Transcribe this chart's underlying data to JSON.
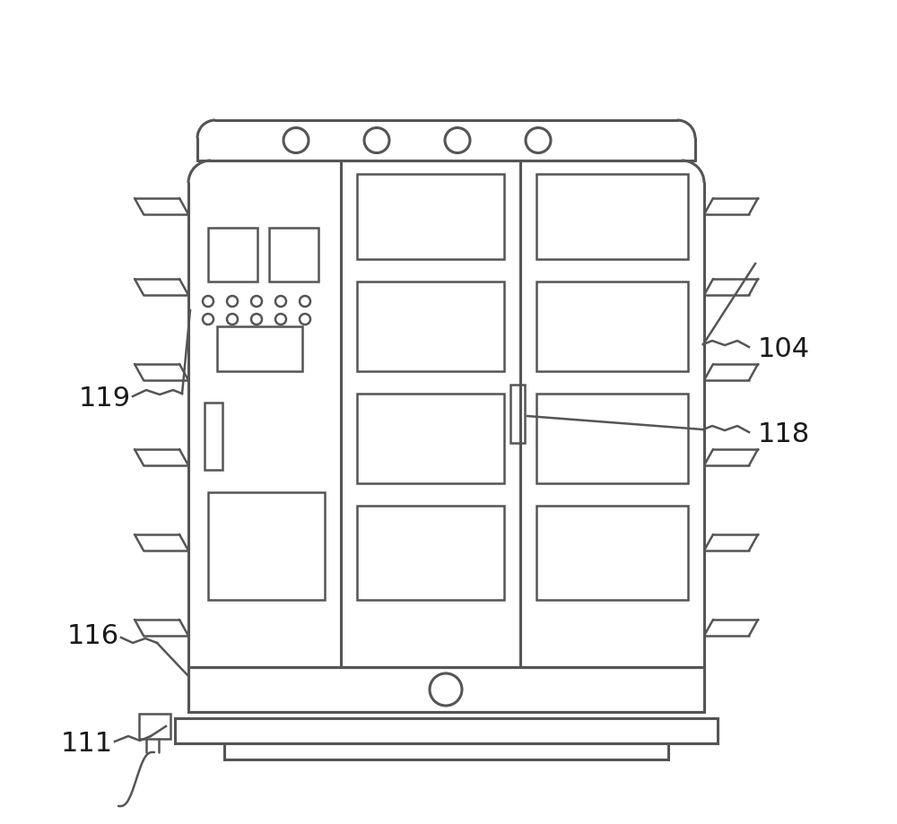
{
  "bg_color": "#ffffff",
  "line_color": "#555555",
  "lw": 1.8,
  "lw_thick": 2.2,
  "fig_w": 10.0,
  "fig_h": 9.2
}
